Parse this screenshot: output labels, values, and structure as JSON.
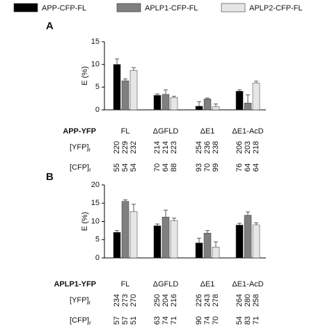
{
  "chart_data": [
    {
      "type": "bar",
      "panel": "A",
      "y_label": "E (%)",
      "construct_label": "APP-YFP",
      "categories": [
        "FL",
        "ΔGFLD",
        "ΔE1",
        "ΔE1-AcD"
      ],
      "series": [
        {
          "name": "APP-CFP-FL",
          "color": "#000000",
          "values": [
            10.0,
            3.2,
            0.8,
            4.1
          ],
          "errors": [
            1.2,
            0.3,
            1.0,
            0.3
          ]
        },
        {
          "name": "APLP1-CFP-FL",
          "color": "#7f7f7f",
          "values": [
            6.4,
            3.4,
            2.4,
            1.5
          ],
          "errors": [
            0.4,
            1.0,
            0.2,
            1.8
          ]
        },
        {
          "name": "APLP2-CFP-FL",
          "color": "#e6e6e6",
          "values": [
            8.7,
            2.7,
            0.7,
            5.9
          ],
          "errors": [
            0.6,
            0.3,
            0.6,
            0.4
          ]
        }
      ],
      "ylim": [
        0,
        15
      ],
      "yticks": [
        0,
        5,
        10,
        15
      ],
      "table": [
        {
          "label": "[YFP]",
          "subscript": "r",
          "values": [
            [
              220,
              229,
              232
            ],
            [
              214,
              214,
              223
            ],
            [
              254,
              236,
              238
            ],
            [
              206,
              203,
              218
            ]
          ]
        },
        {
          "label": "[CFP]",
          "subscript": "r",
          "values": [
            [
              55,
              54,
              54
            ],
            [
              70,
              64,
              88
            ],
            [
              93,
              70,
              99
            ],
            [
              76,
              64,
              64
            ]
          ]
        }
      ]
    },
    {
      "type": "bar",
      "panel": "B",
      "y_label": "E (%)",
      "construct_label": "APLP1-YFP",
      "categories": [
        "FL",
        "ΔGFLD",
        "ΔE1",
        "ΔE1-AcD"
      ],
      "series": [
        {
          "color": "#000000",
          "values": [
            7.0,
            8.8,
            4.1,
            9.0
          ],
          "errors": [
            0.5,
            0.5,
            1.3,
            0.5
          ]
        },
        {
          "color": "#7f7f7f",
          "values": [
            15.5,
            11.2,
            6.8,
            11.7
          ],
          "errors": [
            0.4,
            1.9,
            0.7,
            0.9
          ]
        },
        {
          "color": "#e6e6e6",
          "values": [
            12.7,
            10.2,
            3.0,
            9.0
          ],
          "errors": [
            2.0,
            0.7,
            1.4,
            0.6
          ]
        }
      ],
      "ylim": [
        0,
        20
      ],
      "yticks": [
        0,
        5,
        10,
        15,
        20
      ],
      "table": [
        {
          "label": "[YFP]",
          "subscript": "r",
          "values": [
            [
              234,
              273,
              270
            ],
            [
              250,
              204,
              216
            ],
            [
              226,
              243,
              278
            ],
            [
              264,
              280,
              258
            ]
          ]
        },
        {
          "label": "[CFP]",
          "subscript": "r",
          "values": [
            [
              57,
              57,
              51
            ],
            [
              63,
              74,
              71
            ],
            [
              90,
              74,
              70
            ],
            [
              54,
              83,
              71
            ]
          ]
        }
      ]
    }
  ]
}
